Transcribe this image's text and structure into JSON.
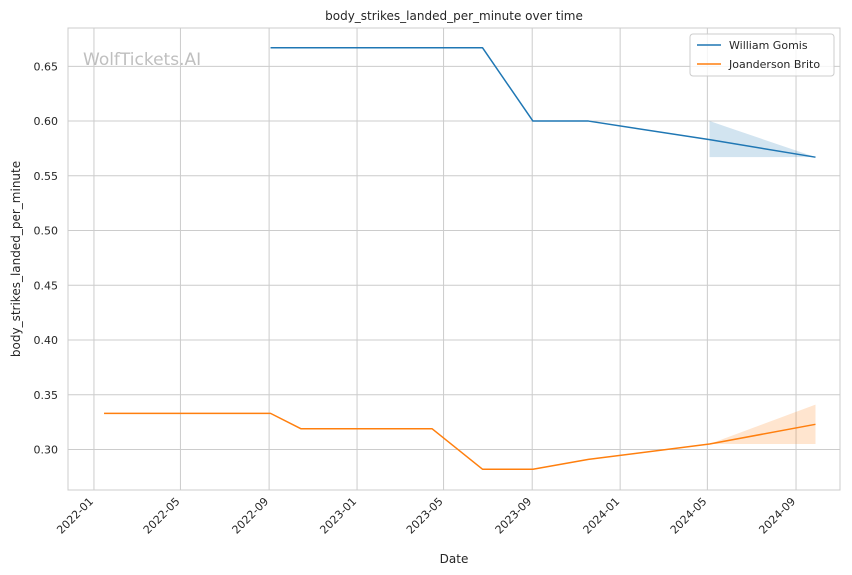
{
  "chart_data": {
    "type": "line",
    "title": "body_strikes_landed_per_minute over time",
    "xlabel": "Date",
    "ylabel": "body_strikes_landed_per_minute",
    "watermark": "WolfTickets.AI",
    "x_ticks": [
      "2022-01",
      "2022-05",
      "2022-09",
      "2023-01",
      "2023-05",
      "2023-09",
      "2024-01",
      "2024-05",
      "2024-09"
    ],
    "y_ticks": [
      "0.30",
      "0.35",
      "0.40",
      "0.45",
      "0.50",
      "0.55",
      "0.60",
      "0.65"
    ],
    "xlim": [
      "2021-11-26",
      "2024-11-01"
    ],
    "ylim": [
      0.263,
      0.685
    ],
    "grid": true,
    "legend_position": "top-right",
    "series": [
      {
        "name": "William Gomis",
        "color": "#1f77b4",
        "points": [
          {
            "x": "2022-09-03",
            "y": 0.667
          },
          {
            "x": "2023-06-24",
            "y": 0.667
          },
          {
            "x": "2023-09-02",
            "y": 0.6
          },
          {
            "x": "2023-11-18",
            "y": 0.6
          },
          {
            "x": "2024-05-04",
            "y": 0.583
          },
          {
            "x": "2024-09-28",
            "y": 0.567
          }
        ],
        "band": [
          {
            "x": "2024-05-04",
            "low": 0.567,
            "high": 0.6
          },
          {
            "x": "2024-09-28",
            "low": 0.567,
            "high": 0.567
          }
        ]
      },
      {
        "name": "Joanderson Brito",
        "color": "#ff7f0e",
        "points": [
          {
            "x": "2022-01-15",
            "y": 0.333
          },
          {
            "x": "2022-09-03",
            "y": 0.333
          },
          {
            "x": "2022-10-15",
            "y": 0.319
          },
          {
            "x": "2023-04-15",
            "y": 0.319
          },
          {
            "x": "2023-06-24",
            "y": 0.282
          },
          {
            "x": "2023-09-02",
            "y": 0.282
          },
          {
            "x": "2023-11-18",
            "y": 0.291
          },
          {
            "x": "2024-05-04",
            "y": 0.305
          },
          {
            "x": "2024-09-28",
            "y": 0.323
          }
        ],
        "band": [
          {
            "x": "2024-05-04",
            "low": 0.305,
            "high": 0.305
          },
          {
            "x": "2024-09-28",
            "low": 0.305,
            "high": 0.341
          }
        ]
      }
    ]
  }
}
